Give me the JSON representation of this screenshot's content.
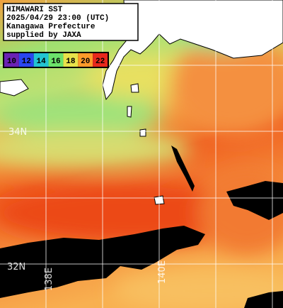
{
  "title": {
    "lines": [
      "HIMAWARI SST",
      "2025/04/29 23:00 (UTC)",
      "Kanagawa Prefecture",
      "supplied by JAXA"
    ]
  },
  "legend": {
    "items": [
      {
        "label": "10",
        "color": "#6a22b4"
      },
      {
        "label": "12",
        "color": "#2a46f0"
      },
      {
        "label": "14",
        "color": "#22c4d2"
      },
      {
        "label": "16",
        "color": "#6ce26a"
      },
      {
        "label": "18",
        "color": "#e8e24a"
      },
      {
        "label": "20",
        "color": "#ff9a2a"
      },
      {
        "label": "22",
        "color": "#e8281c"
      }
    ]
  },
  "grid_labels": {
    "lat": [
      "34N",
      "32N"
    ],
    "lon": [
      "138E",
      "140E"
    ]
  }
}
